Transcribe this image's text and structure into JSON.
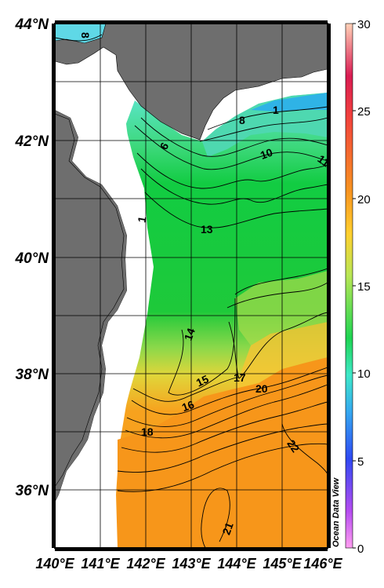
{
  "map": {
    "lat_labels": [
      "44°N",
      "42°N",
      "40°N",
      "38°N",
      "36°N"
    ],
    "lon_labels": [
      "140°E",
      "141°E",
      "142°E",
      "143°E",
      "144°E",
      "145°E",
      "146°E"
    ],
    "contour_labels": [
      "8",
      "6",
      "8",
      "1",
      "10",
      "11",
      "13",
      "1",
      "14",
      "15",
      "16",
      "17",
      "20",
      "18",
      "22",
      "21"
    ],
    "watermark": "Ocean Data View",
    "colors": {
      "land": "#6e6e6e",
      "no_data": "#ffffff",
      "grid": "#000000"
    }
  },
  "colorbar": {
    "ticks": [
      "30",
      "25",
      "20",
      "15",
      "10",
      "5",
      "0"
    ],
    "min": 0,
    "max": 30,
    "stops": [
      "#ff9ef0",
      "#b54cf0",
      "#2f49f2",
      "#35a8f0",
      "#3ee8c8",
      "#1ed452",
      "#b9e655",
      "#ffcf2e",
      "#f79420",
      "#f2423c",
      "#d91b52",
      "#ffd2b8"
    ]
  }
}
